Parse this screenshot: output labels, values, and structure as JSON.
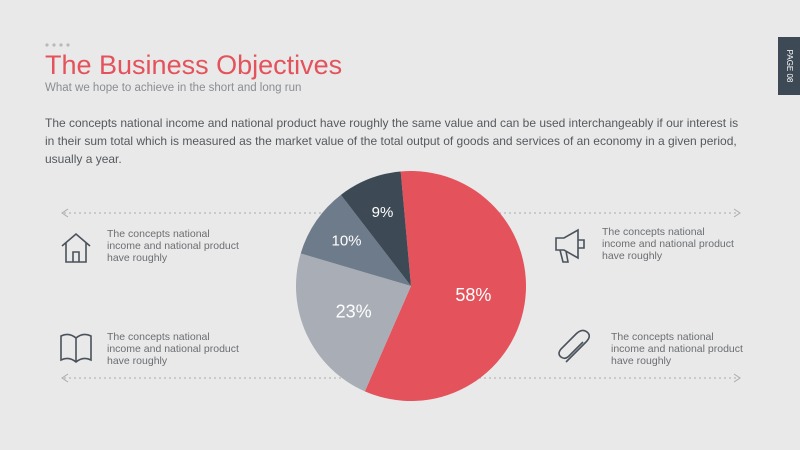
{
  "page_label": "PAGE 08",
  "header": {
    "title": "The Business Objectives",
    "subtitle": "What we hope to achieve in the short and long run"
  },
  "intro": "The concepts national income and national product have roughly the same value and can be used interchangeably if our interest is in their sum total which is measured as the market value of the total output of goods and services of an economy in a given period, usually a year.",
  "features": [
    {
      "text": "The concepts national income and national product have roughly"
    },
    {
      "text": "The concepts national income and national product have roughly"
    },
    {
      "text": "The concepts national income and national product have roughly"
    },
    {
      "text": "The concepts national income and national product have roughly"
    }
  ],
  "chart_data": {
    "type": "pie",
    "values": [
      58,
      23,
      10,
      9
    ],
    "value_labels": [
      "58%",
      "23%",
      "10%",
      "9%"
    ],
    "colors": [
      "#e4525b",
      "#a8adb6",
      "#6e7b8b",
      "#3d4954"
    ]
  }
}
